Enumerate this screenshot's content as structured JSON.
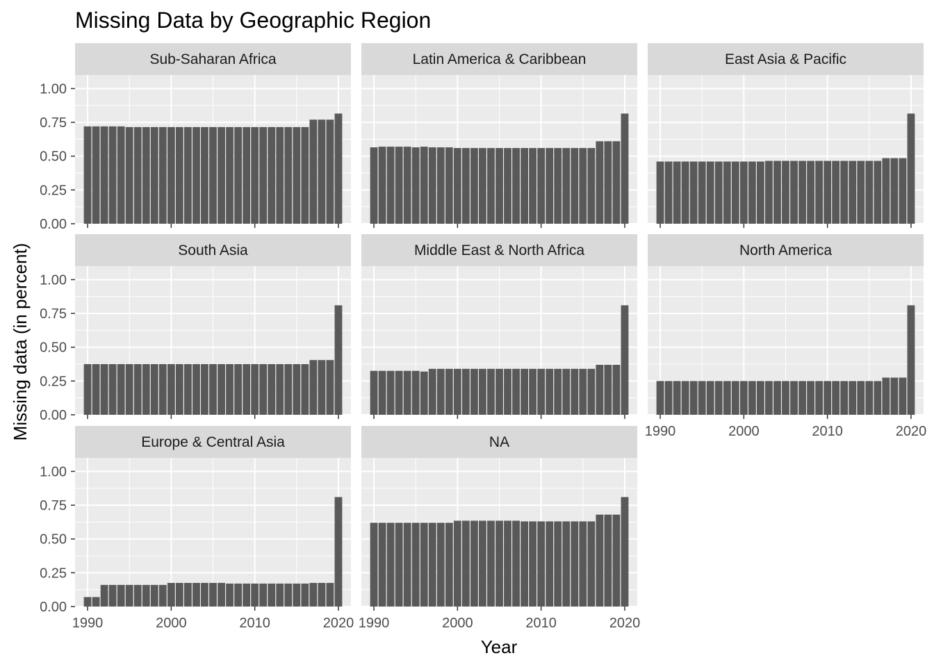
{
  "chart_data": {
    "type": "bar",
    "title": "Missing Data by Geographic Region",
    "xlabel": "Year",
    "ylabel": "Missing data (in percent)",
    "x": [
      1990,
      1991,
      1992,
      1993,
      1994,
      1995,
      1996,
      1997,
      1998,
      1999,
      2000,
      2001,
      2002,
      2003,
      2004,
      2005,
      2006,
      2007,
      2008,
      2009,
      2010,
      2011,
      2012,
      2013,
      2014,
      2015,
      2016,
      2017,
      2018,
      2019,
      2020
    ],
    "x_ticks": [
      1990,
      2000,
      2010,
      2020
    ],
    "y_ticks": [
      "0.00",
      "0.25",
      "0.50",
      "0.75",
      "1.00"
    ],
    "ylim": [
      0,
      1.1
    ],
    "xlim": [
      1988.5,
      2021.5
    ],
    "layout": "facet_wrap 3 columns, shared axes",
    "colors": {
      "bar": "#595959",
      "panel": "#ebebeb",
      "strip": "#d9d9d9",
      "grid": "#ffffff"
    },
    "series": [
      {
        "name": "Sub-Saharan Africa",
        "values": [
          0.72,
          0.72,
          0.72,
          0.72,
          0.72,
          0.715,
          0.715,
          0.715,
          0.715,
          0.715,
          0.715,
          0.715,
          0.715,
          0.715,
          0.715,
          0.715,
          0.715,
          0.715,
          0.715,
          0.715,
          0.715,
          0.715,
          0.715,
          0.715,
          0.715,
          0.715,
          0.715,
          0.77,
          0.77,
          0.77,
          0.815
        ]
      },
      {
        "name": "Latin America & Caribbean",
        "values": [
          0.565,
          0.57,
          0.57,
          0.57,
          0.57,
          0.565,
          0.57,
          0.565,
          0.565,
          0.565,
          0.56,
          0.56,
          0.56,
          0.56,
          0.56,
          0.56,
          0.56,
          0.56,
          0.56,
          0.56,
          0.56,
          0.56,
          0.56,
          0.56,
          0.56,
          0.56,
          0.56,
          0.61,
          0.61,
          0.61,
          0.815
        ]
      },
      {
        "name": "East Asia & Pacific",
        "values": [
          0.46,
          0.46,
          0.46,
          0.46,
          0.46,
          0.46,
          0.46,
          0.46,
          0.46,
          0.46,
          0.46,
          0.46,
          0.46,
          0.465,
          0.465,
          0.465,
          0.465,
          0.465,
          0.465,
          0.465,
          0.465,
          0.465,
          0.465,
          0.465,
          0.465,
          0.465,
          0.465,
          0.485,
          0.485,
          0.485,
          0.815
        ]
      },
      {
        "name": "South Asia",
        "values": [
          0.375,
          0.375,
          0.375,
          0.375,
          0.375,
          0.375,
          0.375,
          0.375,
          0.375,
          0.375,
          0.375,
          0.375,
          0.375,
          0.375,
          0.375,
          0.375,
          0.375,
          0.375,
          0.375,
          0.375,
          0.375,
          0.375,
          0.375,
          0.375,
          0.375,
          0.375,
          0.375,
          0.405,
          0.405,
          0.405,
          0.81
        ]
      },
      {
        "name": "Middle East & North Africa",
        "values": [
          0.325,
          0.325,
          0.325,
          0.325,
          0.325,
          0.325,
          0.32,
          0.34,
          0.34,
          0.34,
          0.34,
          0.34,
          0.34,
          0.34,
          0.34,
          0.34,
          0.34,
          0.34,
          0.34,
          0.34,
          0.34,
          0.34,
          0.34,
          0.34,
          0.34,
          0.34,
          0.34,
          0.37,
          0.37,
          0.37,
          0.81
        ]
      },
      {
        "name": "North America",
        "values": [
          0.25,
          0.25,
          0.25,
          0.25,
          0.25,
          0.25,
          0.25,
          0.25,
          0.25,
          0.25,
          0.25,
          0.25,
          0.25,
          0.25,
          0.25,
          0.25,
          0.25,
          0.25,
          0.25,
          0.25,
          0.25,
          0.25,
          0.25,
          0.25,
          0.25,
          0.25,
          0.25,
          0.275,
          0.275,
          0.275,
          0.81
        ]
      },
      {
        "name": "Europe & Central Asia",
        "values": [
          0.07,
          0.07,
          0.16,
          0.16,
          0.16,
          0.16,
          0.16,
          0.16,
          0.16,
          0.16,
          0.175,
          0.175,
          0.175,
          0.175,
          0.175,
          0.175,
          0.175,
          0.17,
          0.17,
          0.17,
          0.17,
          0.17,
          0.17,
          0.17,
          0.17,
          0.17,
          0.17,
          0.175,
          0.175,
          0.175,
          0.81
        ]
      },
      {
        "name": "NA",
        "values": [
          0.62,
          0.62,
          0.62,
          0.62,
          0.62,
          0.62,
          0.62,
          0.62,
          0.62,
          0.62,
          0.635,
          0.635,
          0.635,
          0.635,
          0.635,
          0.635,
          0.635,
          0.635,
          0.63,
          0.63,
          0.63,
          0.63,
          0.63,
          0.63,
          0.63,
          0.63,
          0.63,
          0.68,
          0.68,
          0.68,
          0.81
        ]
      }
    ]
  }
}
